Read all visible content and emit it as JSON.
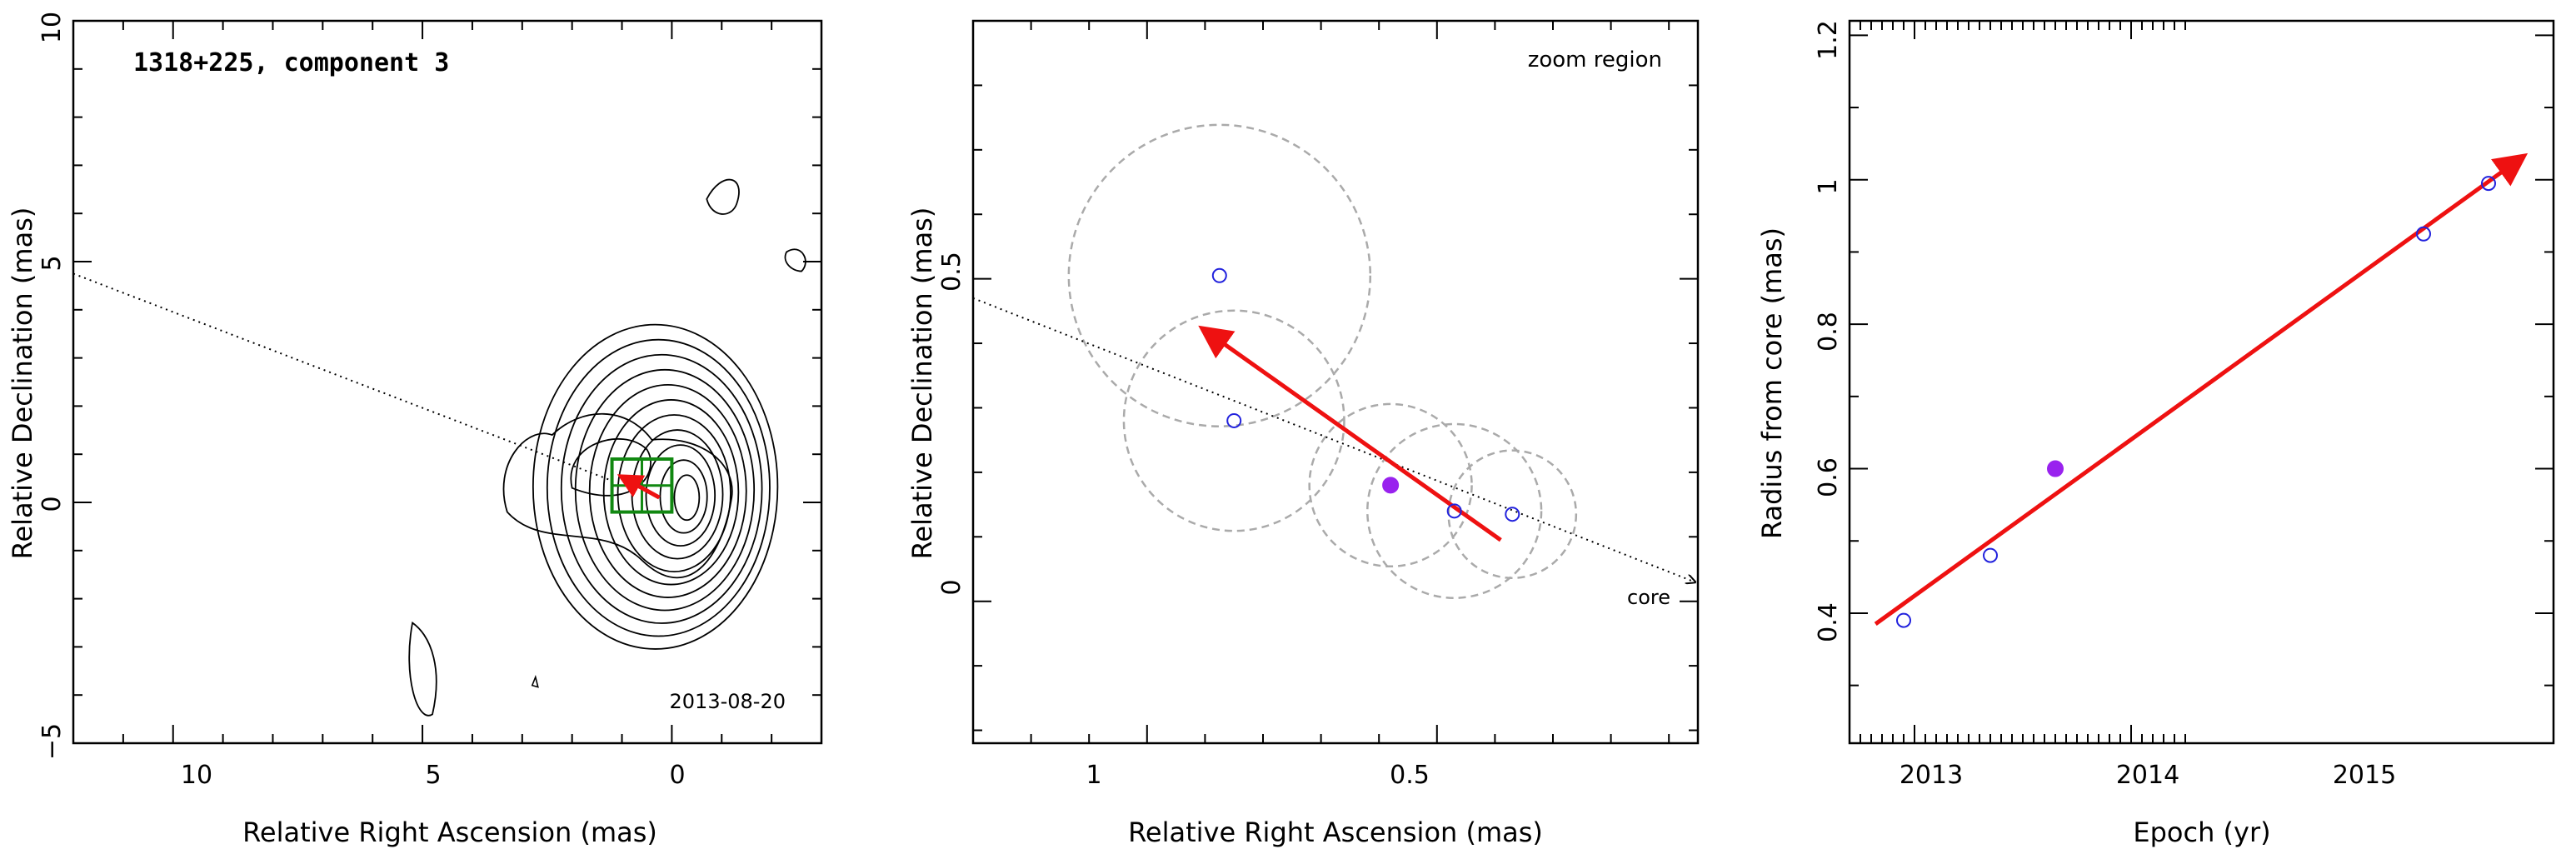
{
  "panels": {
    "left": {
      "title": "1318+225, component 3",
      "date": "2013-08-20",
      "xlabel": "Relative Right Ascension (mas)",
      "ylabel": "Relative Declination (mas)",
      "xticks": [
        "10",
        "5",
        "0"
      ],
      "yticks": [
        "10",
        "5",
        "0",
        "−5"
      ]
    },
    "middle": {
      "zoom_label": "zoom region",
      "core_label": "core",
      "xlabel": "Relative Right Ascension (mas)",
      "ylabel": "Relative Declination (mas)",
      "xticks": [
        "1",
        "0.5"
      ],
      "yticks": [
        "0.5",
        "0"
      ]
    },
    "right": {
      "xlabel": "Epoch (yr)",
      "ylabel": "Radius from core (mas)",
      "xticks": [
        "2013",
        "2014",
        "2015"
      ],
      "yticks": [
        "0.4",
        "0.6",
        "0.8",
        "1",
        "1.2"
      ]
    }
  },
  "colors": {
    "arrow": "#ee1111",
    "point": "#2222dd",
    "highlight": "#9922ee",
    "circle": "#aaaaaa",
    "box": "#118811"
  },
  "chart_data": [
    {
      "type": "scatter",
      "title": "1318+225, component 3",
      "xlabel": "Relative Right Ascension (mas)",
      "ylabel": "Relative Declination (mas)",
      "xlim": [
        12,
        -3
      ],
      "ylim": [
        -5,
        10
      ],
      "annotations": [
        "2013-08-20"
      ],
      "contours": "radio map contours centred near (0, 0)",
      "zoom_box": {
        "x": [
          1.2,
          0
        ],
        "y": [
          -0.2,
          0.9
        ]
      },
      "jet_axis": {
        "x": [
          12,
          -3
        ],
        "y": [
          4.75,
          -1.0
        ]
      }
    },
    {
      "type": "scatter",
      "xlabel": "Relative Right Ascension (mas)",
      "ylabel": "Relative Declination (mas)",
      "xlim": [
        1.3,
        0.05
      ],
      "ylim": [
        -0.22,
        0.9
      ],
      "annotations": [
        "zoom region",
        "core"
      ],
      "series": [
        {
          "x": [
            0.85,
            0.875,
            0.58,
            0.47,
            0.37
          ],
          "y": [
            0.28,
            0.505,
            0.18,
            0.14,
            0.135
          ],
          "filled": [
            false,
            false,
            true,
            false,
            false
          ],
          "r": [
            0.19,
            0.26,
            0.14,
            0.15,
            0.11
          ]
        }
      ],
      "arrow": {
        "from": [
          0.39,
          0.095
        ],
        "to": [
          0.9,
          0.42
        ]
      },
      "jet_axis": {
        "x": [
          1.3,
          0.05
        ],
        "y": [
          0.47,
          0.03
        ]
      }
    },
    {
      "type": "scatter",
      "xlabel": "Epoch (yr)",
      "ylabel": "Radius from core (mas)",
      "xlim": [
        2012.7,
        2015.95
      ],
      "ylim": [
        0.22,
        1.22
      ],
      "series": [
        {
          "x": [
            2012.95,
            2013.35,
            2013.65,
            2015.35,
            2015.65
          ],
          "y": [
            0.39,
            0.48,
            0.6,
            0.925,
            0.995
          ],
          "filled": [
            false,
            false,
            true,
            false,
            false
          ]
        }
      ],
      "fit": {
        "from": [
          2012.82,
          0.385
        ],
        "to": [
          2015.8,
          1.03
        ]
      }
    }
  ]
}
